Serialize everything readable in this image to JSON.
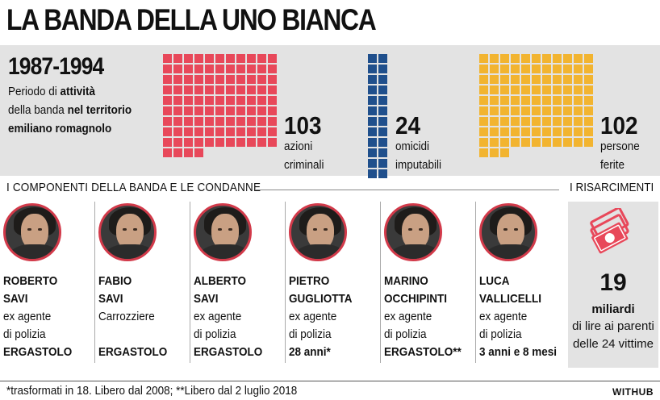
{
  "title": "LA BANDA DELLA UNO BIANCA",
  "period": {
    "years": "1987-1994",
    "line1_pre": "Periodo di ",
    "line1_bold": "attività",
    "line2_pre": "della banda ",
    "line2_bold": "nel territorio",
    "line3_bold": "emiliano romagnolo"
  },
  "stats": [
    {
      "value": "103",
      "label1": "azioni",
      "label2": "criminali",
      "count": 103,
      "color": "#e8485a"
    },
    {
      "value": "24",
      "label1": "omicidi",
      "label2": "imputabili",
      "count": 24,
      "color": "#1f4f8c"
    },
    {
      "value": "102",
      "label1": "persone",
      "label2": "ferite",
      "count": 102,
      "color": "#f2b430"
    }
  ],
  "sections": {
    "members_title": "I COMPONENTI DELLA BANDA E LE CONDANNE",
    "compensation_title": "I RISARCIMENTI"
  },
  "members": [
    {
      "first": "ROBERTO",
      "last": "SAVI",
      "role": [
        "ex agente",
        "di polizia"
      ],
      "sentence": "ERGASTOLO"
    },
    {
      "first": "FABIO",
      "last": "SAVI",
      "role": [
        "Carrozziere",
        ""
      ],
      "sentence": "ERGASTOLO"
    },
    {
      "first": "ALBERTO",
      "last": "SAVI",
      "role": [
        "ex agente",
        "di polizia"
      ],
      "sentence": "ERGASTOLO"
    },
    {
      "first": "PIETRO",
      "last": "GUGLIOTTA",
      "role": [
        "ex agente",
        "di polizia"
      ],
      "sentence": "28 anni*"
    },
    {
      "first": "MARINO",
      "last": "OCCHIPINTI",
      "role": [
        "ex agente",
        "di polizia"
      ],
      "sentence": "ERGASTOLO**"
    },
    {
      "first": "LUCA",
      "last": "VALLICELLI",
      "role": [
        "ex agente",
        "di polizia"
      ],
      "sentence": "3 anni e 8 mesi"
    }
  ],
  "compensation": {
    "value": "19",
    "unit": "miliardi",
    "line1": "di lire ai parenti",
    "line2": "delle 24 vittime",
    "icon": "money-icon",
    "accent": "#e8485a"
  },
  "footnote": "*trasformati in 18. Libero dal 2008; **Libero dal 2 luglio 2018",
  "brand": "WITHUB"
}
